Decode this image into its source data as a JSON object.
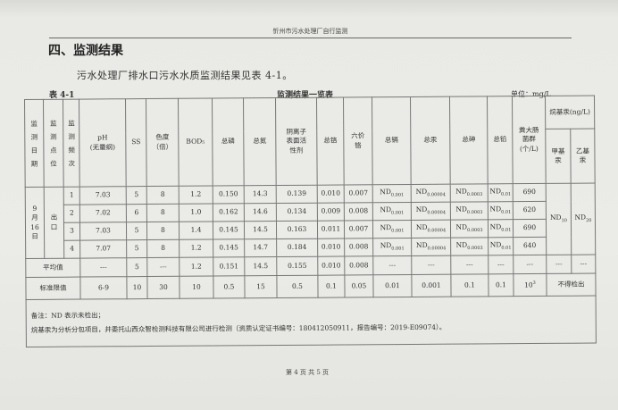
{
  "page_header": "忻州市污水处理厂自行监测",
  "section_title": "四、监测结果",
  "intro": "污水处理厂排水口污水水质监测结果见表 4-1。",
  "table_label": "表 4-1",
  "table_title": "监测结果一览表",
  "unit": "单位：mg/L",
  "headers": {
    "date": "监测日期",
    "site": "监测点位",
    "freq": "监测频次",
    "cols": [
      "pH\n(无量纲)",
      "SS",
      "色度\n（倍）",
      "BOD₅",
      "总磷",
      "总氮",
      "阴离子\n表面活\n性剂",
      "总铬",
      "六价\n铬",
      "总镉",
      "总汞",
      "总砷",
      "总铅",
      "粪大肠\n菌群\n(个/L)"
    ],
    "alkyl": "烷基汞(ng/L)",
    "methyl": "甲基\n汞",
    "ethyl": "乙基\n汞"
  },
  "date": "9\n月\n16\n日",
  "site": "出\n口",
  "rows": [
    {
      "freq": "1",
      "values": [
        "7.03",
        "5",
        "8",
        "1.2",
        "0.150",
        "14.3",
        "0.139",
        "0.010",
        "0.007",
        {
          "main": "ND",
          "sub": "0.001"
        },
        {
          "main": "ND",
          "sub": "0.00004"
        },
        {
          "main": "ND",
          "sub": "0.0003"
        },
        {
          "main": "ND",
          "sub": "0.01"
        },
        "690"
      ]
    },
    {
      "freq": "2",
      "values": [
        "7.02",
        "6",
        "8",
        "1.0",
        "0.162",
        "14.6",
        "0.134",
        "0.009",
        "0.008",
        {
          "main": "ND",
          "sub": "0.001"
        },
        {
          "main": "ND",
          "sub": "0.00004"
        },
        {
          "main": "ND",
          "sub": "0.0003"
        },
        {
          "main": "ND",
          "sub": "0.01"
        },
        "620"
      ]
    },
    {
      "freq": "3",
      "values": [
        "7.03",
        "5",
        "8",
        "1.4",
        "0.145",
        "14.5",
        "0.163",
        "0.011",
        "0.007",
        {
          "main": "ND",
          "sub": "0.001"
        },
        {
          "main": "ND",
          "sub": "0.00004"
        },
        {
          "main": "ND",
          "sub": "0.0003"
        },
        {
          "main": "ND",
          "sub": "0.01"
        },
        "690"
      ]
    },
    {
      "freq": "4",
      "values": [
        "7.07",
        "5",
        "8",
        "1.2",
        "0.145",
        "14.7",
        "0.184",
        "0.010",
        "0.008",
        {
          "main": "ND",
          "sub": "0.001"
        },
        {
          "main": "ND",
          "sub": "0.00004"
        },
        {
          "main": "ND",
          "sub": "0.0003"
        },
        {
          "main": "ND",
          "sub": "0.01"
        },
        "640"
      ]
    }
  ],
  "methyl_value": {
    "main": "ND",
    "sub": "10"
  },
  "ethyl_value": {
    "main": "ND",
    "sub": "20"
  },
  "average": {
    "label": "平均值",
    "values": [
      "---",
      "5",
      "---",
      "1.2",
      "0.151",
      "14.5",
      "0.155",
      "0.010",
      "0.008",
      "---",
      "---",
      "---",
      "---",
      "---",
      "---",
      "---"
    ]
  },
  "standard": {
    "label": "标准限值",
    "values": [
      "6-9",
      "10",
      "30",
      "10",
      "0.5",
      "15",
      "0.5",
      "0.1",
      "0.05",
      "0.01",
      "0.001",
      "0.1",
      "0.1",
      {
        "main": "10",
        "sup": "3"
      }
    ],
    "alkyl": "不得检出"
  },
  "notes": [
    "备注：ND 表示未检出；",
    "烷基汞为分析分包项目，并委托山西众智检测科技有限公司进行检测（资质认定证书编号：180412050911，报告编号：2019-E09074）。"
  ],
  "footer": "第 4 页 共 5 页"
}
